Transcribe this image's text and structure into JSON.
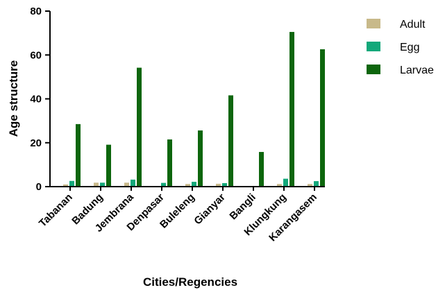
{
  "chart_data": {
    "type": "bar",
    "xlabel": "Cities/Regencies",
    "ylabel": "Age structure",
    "ylim": [
      0,
      80
    ],
    "yticks": [
      "0",
      "20",
      "40",
      "60",
      "80"
    ],
    "grid": false,
    "legend_position": "top-right",
    "categories": [
      "Tabanan",
      "Badung",
      "Jembrana",
      "Denpasar",
      "Buleleng",
      "Gianyar",
      "Bangli",
      "Klungkung",
      "Karangasem"
    ],
    "series": [
      {
        "name": "Adult",
        "color": "#c8b98a",
        "values": [
          1.0,
          1.8,
          1.8,
          0.3,
          1.2,
          1.3,
          0.2,
          1.2,
          1.2
        ]
      },
      {
        "name": "Egg",
        "color": "#13a87a",
        "values": [
          2.6,
          1.8,
          3.2,
          1.7,
          2.2,
          1.6,
          0.2,
          3.6,
          2.5
        ]
      },
      {
        "name": "Larvae",
        "color": "#0d660d",
        "values": [
          28.5,
          19.1,
          54.2,
          21.5,
          25.6,
          41.6,
          15.8,
          70.5,
          62.6
        ]
      }
    ]
  }
}
